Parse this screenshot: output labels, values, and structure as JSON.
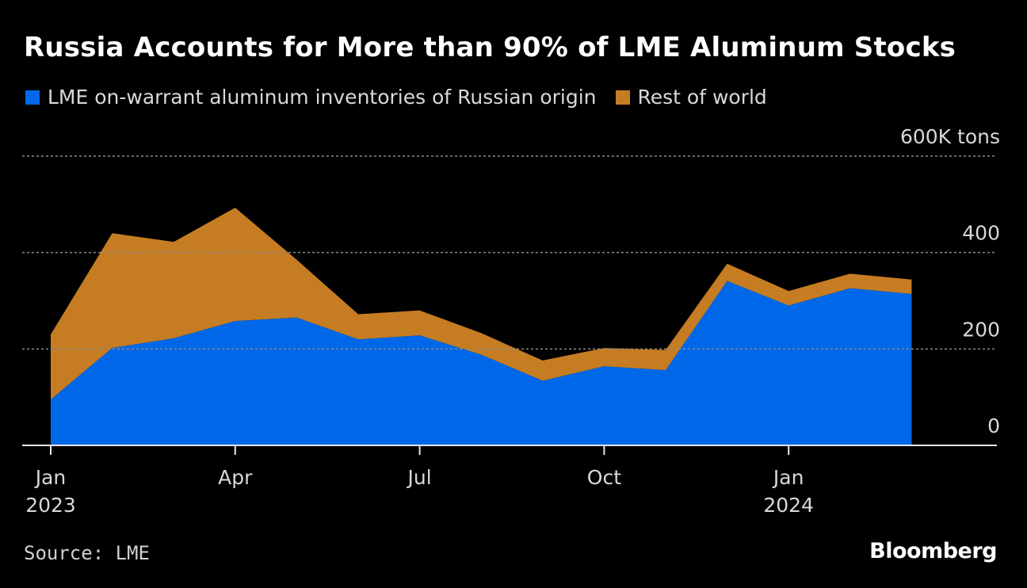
{
  "header": {
    "title": "Russia Accounts for More than 90% of LME Aluminum Stocks"
  },
  "legend": {
    "items": [
      {
        "label": "LME on-warrant aluminum inventories of Russian origin",
        "color": "#0068E8"
      },
      {
        "label": "Rest of world",
        "color": "#C67C22"
      }
    ]
  },
  "chart_data": {
    "type": "area",
    "stacked": true,
    "title": "Russia Accounts for More than 90% of LME Aluminum Stocks",
    "ylabel": "",
    "y_unit_label": "600K tons",
    "ylim": [
      0,
      600
    ],
    "yticks": [
      {
        "value": 0,
        "label": "0"
      },
      {
        "value": 200,
        "label": "200"
      },
      {
        "value": 400,
        "label": "400"
      },
      {
        "value": 600,
        "label": "600K tons"
      }
    ],
    "xticks": [
      {
        "month_index": 0,
        "label": "Jan",
        "sublabel": "2023"
      },
      {
        "month_index": 3,
        "label": "Apr",
        "sublabel": ""
      },
      {
        "month_index": 6,
        "label": "Jul",
        "sublabel": ""
      },
      {
        "month_index": 9,
        "label": "Oct",
        "sublabel": ""
      },
      {
        "month_index": 12,
        "label": "Jan",
        "sublabel": "2024"
      }
    ],
    "x": [
      "2023-01",
      "2023-02",
      "2023-03",
      "2023-04",
      "2023-05",
      "2023-06",
      "2023-07",
      "2023-08",
      "2023-09",
      "2023-10",
      "2023-11",
      "2023-12",
      "2024-01",
      "2024-02",
      "2024-03"
    ],
    "x_month_index": [
      0,
      1,
      2,
      3,
      4,
      5,
      6,
      7,
      8,
      9,
      10,
      11,
      12,
      13,
      14
    ],
    "series": [
      {
        "name": "LME on-warrant aluminum inventories of Russian origin",
        "color": "#0068E8",
        "values": [
          95,
          202,
          222,
          258,
          265,
          220,
          228,
          188,
          134,
          164,
          156,
          341,
          290,
          326,
          314
        ]
      },
      {
        "name": "Rest of world",
        "color": "#C67C22",
        "values": [
          135,
          238,
          200,
          235,
          120,
          52,
          52,
          45,
          42,
          38,
          42,
          36,
          30,
          30,
          30
        ]
      }
    ],
    "grid": true
  },
  "footer": {
    "source": "Source: LME",
    "brand": "Bloomberg"
  }
}
